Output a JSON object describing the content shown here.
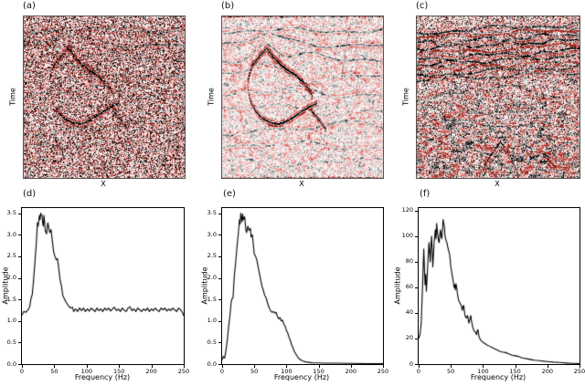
{
  "figure": {
    "background": "#ffffff"
  },
  "colors": {
    "line": "#000000",
    "spine": "#000000",
    "seismic_positive_peak": "#000000",
    "seismic_negative_peak": "#8b1500",
    "seismic_background": "#ffffff",
    "seismic_speckle": "#e8a184",
    "image_border": "#555555"
  },
  "panels": {
    "a": {
      "label": "(a)",
      "xlabel": "X",
      "ylabel": "Time"
    },
    "b": {
      "label": "(b)",
      "xlabel": "X",
      "ylabel": "Time"
    },
    "c": {
      "label": "(c)",
      "xlabel": "X",
      "ylabel": "Time"
    },
    "d": {
      "label": "(d)",
      "xlabel": "Frequency (Hz)",
      "ylabel": "Amplitude"
    },
    "e": {
      "label": "(e)",
      "xlabel": "Frequency (Hz)",
      "ylabel": "Amplitude"
    },
    "f": {
      "label": "(f)",
      "xlabel": "Frequency (Hz)",
      "ylabel": "Amplitude"
    }
  },
  "chart_data": [
    {
      "id": "a",
      "type": "heatmap",
      "panel": "(a)",
      "xlabel": "X",
      "ylabel": "Time",
      "axes_ticks": "none",
      "description": "Noisy synthetic seismic section: dense red/gray speckle noise over faint wavy gray reflectors; a strong black reflector with dark-red fringes forms a peaked lens (apex near upper-left, closed loop toward center); steep faint fault trace on the right side.",
      "colormap": "white background, positive=black, negative=dark red"
    },
    {
      "id": "b",
      "type": "heatmap",
      "panel": "(b)",
      "xlabel": "X",
      "ylabel": "Time",
      "axes_ticks": "none",
      "description": "Same synthetic section after denoising: identical lens structure and layered reflectors with much smoother, paler salmon/gray background noise.",
      "colormap": "white background, positive=black, negative=dark red"
    },
    {
      "id": "c",
      "type": "heatmap",
      "panel": "(c)",
      "xlabel": "X",
      "ylabel": "Time",
      "axes_ticks": "none",
      "description": "Field seismic section: dense strong subhorizontal black and red reflectors in the upper third, chaotic noisy lower part with dipping events and a strong peaked black/red structure at bottom center and bottom right.",
      "colormap": "white background, positive=black, negative=dark red"
    },
    {
      "id": "d",
      "type": "line",
      "panel": "(d)",
      "xlabel": "Frequency (Hz)",
      "ylabel": "Amplitude",
      "xlim": [
        0,
        250
      ],
      "ylim": [
        0,
        3.62
      ],
      "xticks": [
        0,
        50,
        100,
        150,
        200,
        250
      ],
      "xtick_labels": [
        "0",
        "50",
        "100",
        "150",
        "200",
        "250"
      ],
      "yticks": [
        0,
        0.5,
        1.0,
        1.5,
        2.0,
        2.5,
        3.0,
        3.5
      ],
      "ytick_labels": [
        "0.0",
        "0.5",
        "1.0",
        "1.5",
        "2.0",
        "2.5",
        "3.0",
        "3.5"
      ],
      "points": [
        [
          0,
          1.13
        ],
        [
          3,
          1.22
        ],
        [
          6,
          1.2
        ],
        [
          9,
          1.25
        ],
        [
          12,
          1.33
        ],
        [
          14,
          1.52
        ],
        [
          16,
          1.62
        ],
        [
          18,
          1.95
        ],
        [
          20,
          2.35
        ],
        [
          22,
          2.75
        ],
        [
          24,
          3.28
        ],
        [
          25,
          3.2
        ],
        [
          27,
          3.45
        ],
        [
          28,
          3.35
        ],
        [
          29,
          3.5
        ],
        [
          31,
          3.45
        ],
        [
          32,
          3.28
        ],
        [
          33,
          3.2
        ],
        [
          34,
          3.45
        ],
        [
          35,
          3.3
        ],
        [
          36,
          3.1
        ],
        [
          38,
          3.02
        ],
        [
          40,
          3.28
        ],
        [
          41,
          3.2
        ],
        [
          43,
          3.05
        ],
        [
          45,
          3.12
        ],
        [
          47,
          2.85
        ],
        [
          49,
          2.6
        ],
        [
          51,
          2.5
        ],
        [
          53,
          2.42
        ],
        [
          55,
          2.45
        ],
        [
          57,
          2.2
        ],
        [
          59,
          1.95
        ],
        [
          61,
          1.82
        ],
        [
          63,
          1.6
        ],
        [
          66,
          1.5
        ],
        [
          69,
          1.42
        ],
        [
          72,
          1.35
        ],
        [
          75,
          1.3
        ],
        [
          78,
          1.32
        ],
        [
          80,
          1.22
        ],
        [
          83,
          1.28
        ],
        [
          86,
          1.22
        ],
        [
          89,
          1.3
        ],
        [
          92,
          1.24
        ],
        [
          95,
          1.3
        ],
        [
          98,
          1.22
        ],
        [
          101,
          1.28
        ],
        [
          104,
          1.23
        ],
        [
          107,
          1.3
        ],
        [
          110,
          1.26
        ],
        [
          113,
          1.22
        ],
        [
          116,
          1.3
        ],
        [
          119,
          1.24
        ],
        [
          122,
          1.28
        ],
        [
          125,
          1.22
        ],
        [
          128,
          1.3
        ],
        [
          131,
          1.25
        ],
        [
          134,
          1.3
        ],
        [
          137,
          1.23
        ],
        [
          140,
          1.28
        ],
        [
          143,
          1.32
        ],
        [
          146,
          1.24
        ],
        [
          149,
          1.28
        ],
        [
          152,
          1.22
        ],
        [
          155,
          1.3
        ],
        [
          158,
          1.25
        ],
        [
          161,
          1.22
        ],
        [
          164,
          1.3
        ],
        [
          167,
          1.33
        ],
        [
          170,
          1.24
        ],
        [
          173,
          1.28
        ],
        [
          176,
          1.22
        ],
        [
          179,
          1.3
        ],
        [
          182,
          1.26
        ],
        [
          185,
          1.22
        ],
        [
          188,
          1.28
        ],
        [
          191,
          1.24
        ],
        [
          194,
          1.3
        ],
        [
          197,
          1.22
        ],
        [
          200,
          1.28
        ],
        [
          203,
          1.24
        ],
        [
          206,
          1.3
        ],
        [
          209,
          1.25
        ],
        [
          212,
          1.22
        ],
        [
          215,
          1.3
        ],
        [
          218,
          1.26
        ],
        [
          221,
          1.3
        ],
        [
          224,
          1.23
        ],
        [
          227,
          1.28
        ],
        [
          230,
          1.24
        ],
        [
          233,
          1.3
        ],
        [
          236,
          1.26
        ],
        [
          239,
          1.22
        ],
        [
          242,
          1.3
        ],
        [
          245,
          1.26
        ],
        [
          248,
          1.2
        ],
        [
          250,
          1.12
        ]
      ]
    },
    {
      "id": "e",
      "type": "line",
      "panel": "(e)",
      "xlabel": "Frequency (Hz)",
      "ylabel": "Amplitude",
      "xlim": [
        0,
        250
      ],
      "ylim": [
        0,
        3.62
      ],
      "xticks": [
        0,
        50,
        100,
        150,
        200,
        250
      ],
      "xtick_labels": [
        "0",
        "50",
        "100",
        "150",
        "200",
        "250"
      ],
      "yticks": [
        0,
        0.5,
        1.0,
        1.5,
        2.0,
        2.5,
        3.0,
        3.5
      ],
      "ytick_labels": [
        "0.0",
        "0.5",
        "1.0",
        "1.5",
        "2.0",
        "2.5",
        "3.0",
        "3.5"
      ],
      "points": [
        [
          0,
          0.1
        ],
        [
          2,
          0.18
        ],
        [
          4,
          0.14
        ],
        [
          6,
          0.32
        ],
        [
          8,
          0.55
        ],
        [
          10,
          0.85
        ],
        [
          12,
          1.1
        ],
        [
          14,
          1.42
        ],
        [
          15,
          1.5
        ],
        [
          17,
          1.55
        ],
        [
          19,
          2.05
        ],
        [
          21,
          2.35
        ],
        [
          23,
          2.7
        ],
        [
          25,
          3.0
        ],
        [
          27,
          3.35
        ],
        [
          28,
          3.25
        ],
        [
          29,
          3.5
        ],
        [
          30,
          3.4
        ],
        [
          31,
          3.3
        ],
        [
          32,
          3.48
        ],
        [
          33,
          3.35
        ],
        [
          35,
          3.42
        ],
        [
          37,
          3.1
        ],
        [
          38,
          3.05
        ],
        [
          40,
          3.2
        ],
        [
          42,
          3.1
        ],
        [
          44,
          3.15
        ],
        [
          45,
          2.95
        ],
        [
          47,
          3.0
        ],
        [
          48,
          2.85
        ],
        [
          50,
          2.55
        ],
        [
          52,
          2.5
        ],
        [
          54,
          2.42
        ],
        [
          56,
          2.25
        ],
        [
          58,
          2.1
        ],
        [
          60,
          1.95
        ],
        [
          62,
          1.8
        ],
        [
          64,
          1.72
        ],
        [
          66,
          1.6
        ],
        [
          68,
          1.55
        ],
        [
          70,
          1.45
        ],
        [
          72,
          1.35
        ],
        [
          74,
          1.28
        ],
        [
          76,
          1.22
        ],
        [
          78,
          1.2
        ],
        [
          80,
          1.22
        ],
        [
          82,
          1.18
        ],
        [
          84,
          1.2
        ],
        [
          86,
          1.1
        ],
        [
          88,
          1.05
        ],
        [
          90,
          1.08
        ],
        [
          92,
          1.0
        ],
        [
          94,
          1.02
        ],
        [
          96,
          0.92
        ],
        [
          98,
          0.88
        ],
        [
          100,
          0.78
        ],
        [
          102,
          0.72
        ],
        [
          104,
          0.62
        ],
        [
          106,
          0.55
        ],
        [
          108,
          0.45
        ],
        [
          110,
          0.38
        ],
        [
          112,
          0.3
        ],
        [
          114,
          0.25
        ],
        [
          116,
          0.2
        ],
        [
          118,
          0.15
        ],
        [
          120,
          0.12
        ],
        [
          123,
          0.09
        ],
        [
          126,
          0.07
        ],
        [
          130,
          0.05
        ],
        [
          135,
          0.04
        ],
        [
          140,
          0.03
        ],
        [
          150,
          0.025
        ],
        [
          160,
          0.02
        ],
        [
          180,
          0.02
        ],
        [
          200,
          0.015
        ],
        [
          225,
          0.01
        ],
        [
          250,
          0.01
        ]
      ]
    },
    {
      "id": "f",
      "type": "line",
      "panel": "(f)",
      "xlabel": "Frequency (Hz)",
      "ylabel": "Amplitude",
      "xlim": [
        0,
        250
      ],
      "ylim": [
        0,
        122
      ],
      "xticks": [
        0,
        50,
        100,
        150,
        200,
        250
      ],
      "xtick_labels": [
        "0",
        "50",
        "100",
        "150",
        "200",
        "250"
      ],
      "yticks": [
        0,
        20,
        40,
        60,
        80,
        100,
        120
      ],
      "ytick_labels": [
        "0",
        "20",
        "40",
        "60",
        "80",
        "100",
        "120"
      ],
      "points": [
        [
          0,
          20
        ],
        [
          2,
          23
        ],
        [
          4,
          32
        ],
        [
          6,
          60
        ],
        [
          8,
          90
        ],
        [
          9,
          75
        ],
        [
          10,
          62
        ],
        [
          11,
          70
        ],
        [
          12,
          57
        ],
        [
          14,
          76
        ],
        [
          16,
          95
        ],
        [
          17,
          88
        ],
        [
          18,
          80
        ],
        [
          19,
          92
        ],
        [
          20,
          100
        ],
        [
          21,
          90
        ],
        [
          22,
          76
        ],
        [
          23,
          85
        ],
        [
          24,
          95
        ],
        [
          25,
          100
        ],
        [
          26,
          105
        ],
        [
          27,
          98
        ],
        [
          28,
          110
        ],
        [
          29,
          104
        ],
        [
          30,
          100
        ],
        [
          31,
          96
        ],
        [
          32,
          95
        ],
        [
          33,
          102
        ],
        [
          34,
          105
        ],
        [
          35,
          100
        ],
        [
          36,
          98
        ],
        [
          37,
          104
        ],
        [
          38,
          113
        ],
        [
          39,
          110
        ],
        [
          40,
          108
        ],
        [
          41,
          100
        ],
        [
          42,
          98
        ],
        [
          43,
          96
        ],
        [
          44,
          95
        ],
        [
          45,
          92
        ],
        [
          46,
          90
        ],
        [
          47,
          88
        ],
        [
          48,
          86
        ],
        [
          49,
          82
        ],
        [
          50,
          76
        ],
        [
          52,
          70
        ],
        [
          54,
          64
        ],
        [
          55,
          60
        ],
        [
          56,
          62
        ],
        [
          57,
          58
        ],
        [
          58,
          63
        ],
        [
          59,
          60
        ],
        [
          60,
          56
        ],
        [
          62,
          50
        ],
        [
          64,
          48
        ],
        [
          66,
          46
        ],
        [
          68,
          42
        ],
        [
          69,
          45
        ],
        [
          70,
          46
        ],
        [
          71,
          42
        ],
        [
          72,
          38
        ],
        [
          74,
          36
        ],
        [
          76,
          38
        ],
        [
          78,
          32
        ],
        [
          80,
          36
        ],
        [
          81,
          38
        ],
        [
          82,
          34
        ],
        [
          84,
          29
        ],
        [
          86,
          26
        ],
        [
          88,
          25
        ],
        [
          90,
          23
        ],
        [
          91,
          26
        ],
        [
          92,
          27
        ],
        [
          93,
          24
        ],
        [
          94,
          21
        ],
        [
          96,
          19
        ],
        [
          98,
          18
        ],
        [
          100,
          17
        ],
        [
          103,
          16
        ],
        [
          106,
          15
        ],
        [
          110,
          14
        ],
        [
          114,
          13
        ],
        [
          118,
          12
        ],
        [
          122,
          11
        ],
        [
          126,
          10
        ],
        [
          130,
          9.5
        ],
        [
          135,
          9
        ],
        [
          140,
          8
        ],
        [
          145,
          7
        ],
        [
          150,
          6.5
        ],
        [
          155,
          6
        ],
        [
          160,
          5
        ],
        [
          165,
          4.5
        ],
        [
          170,
          4
        ],
        [
          175,
          3.5
        ],
        [
          180,
          3
        ],
        [
          185,
          2.8
        ],
        [
          190,
          2.5
        ],
        [
          195,
          2.2
        ],
        [
          200,
          2
        ],
        [
          210,
          1.5
        ],
        [
          220,
          1.2
        ],
        [
          230,
          0.8
        ],
        [
          240,
          0.5
        ],
        [
          250,
          0.3
        ]
      ]
    }
  ]
}
